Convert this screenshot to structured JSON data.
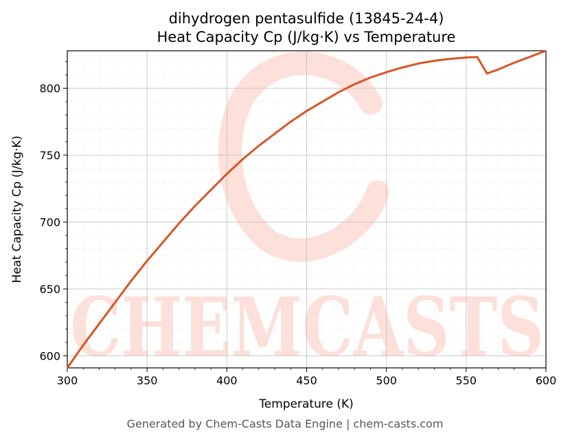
{
  "chart_data": {
    "type": "line",
    "title_line1": "dihydrogen pentasulfide (13845-24-4)",
    "title_line2": "Heat Capacity Cp (J/kg·K) vs Temperature",
    "xlabel": "Temperature (K)",
    "ylabel": "Heat Capacity Cp (J/kg·K)",
    "xlim": [
      300,
      600
    ],
    "ylim": [
      591,
      828
    ],
    "xticks": [
      300,
      350,
      400,
      450,
      500,
      550,
      600
    ],
    "yticks": [
      600,
      650,
      700,
      750,
      800
    ],
    "grid": true,
    "line_color": "#d95424",
    "series": [
      {
        "x": [
          300,
          310,
          320,
          330,
          340,
          350,
          360,
          370,
          380,
          390,
          400,
          410,
          420,
          430,
          440,
          450,
          460,
          470,
          480,
          490,
          500,
          510,
          520,
          530,
          540,
          550,
          557,
          563,
          570,
          580,
          590,
          600
        ],
        "values": [
          591,
          608,
          624,
          640,
          656,
          671,
          685,
          699,
          712,
          724,
          736,
          747,
          757,
          766,
          775,
          783,
          790,
          797,
          803,
          808,
          812,
          815.5,
          818.5,
          820.5,
          822,
          823,
          823.3,
          811,
          814,
          819,
          823.5,
          828
        ]
      }
    ]
  },
  "watermark": {
    "text": "CHEMCASTS",
    "color": "#fde0d9"
  },
  "footer": "Generated by Chem-Casts Data Engine | chem-casts.com"
}
